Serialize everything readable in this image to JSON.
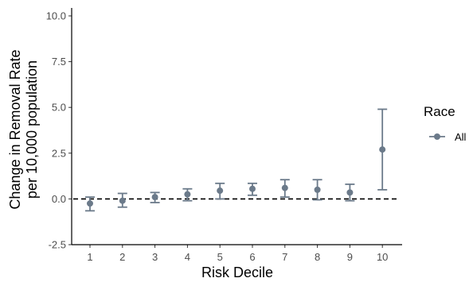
{
  "chart_data": {
    "type": "scatter",
    "title": "",
    "xlabel": "Risk Decile",
    "ylabel_lines": [
      "Change in Removal Rate",
      "per 10,000 population"
    ],
    "ylim": [
      -2.5,
      10.0
    ],
    "yticks": [
      -2.5,
      0.0,
      2.5,
      5.0,
      7.5,
      10.0
    ],
    "ytick_labels": [
      "-2.5",
      "0.0",
      "2.5",
      "5.0",
      "7.5",
      "10.0"
    ],
    "categories": [
      "1",
      "2",
      "3",
      "4",
      "5",
      "6",
      "7",
      "8",
      "9",
      "10"
    ],
    "reference_line_y": 0,
    "grid": false,
    "legend": {
      "title": "Race",
      "placement": "right"
    },
    "series": [
      {
        "name": "All",
        "color": "#6b7a8a",
        "values": [
          -0.25,
          -0.1,
          0.1,
          0.25,
          0.45,
          0.55,
          0.6,
          0.5,
          0.35,
          2.7
        ],
        "lower": [
          -0.65,
          -0.45,
          -0.2,
          -0.1,
          0.0,
          0.2,
          0.1,
          -0.05,
          -0.1,
          0.5
        ],
        "upper": [
          0.1,
          0.3,
          0.35,
          0.55,
          0.85,
          0.85,
          1.05,
          1.05,
          0.8,
          4.9
        ]
      }
    ]
  }
}
